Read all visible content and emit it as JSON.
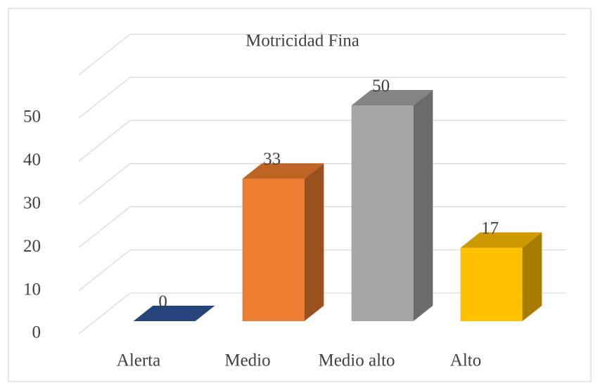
{
  "chart_data": {
    "type": "bar3d",
    "title": "Motricidad Fina",
    "categories": [
      "Alerta",
      "Medio",
      "Medio alto",
      "Alto"
    ],
    "values": [
      0,
      33,
      50,
      17
    ],
    "colors": [
      "#2f5597",
      "#ed7d31",
      "#a5a5a5",
      "#ffc000"
    ],
    "ylim": [
      0,
      60
    ],
    "yticks": [
      0,
      10,
      20,
      30,
      40,
      50
    ],
    "grid": true
  }
}
